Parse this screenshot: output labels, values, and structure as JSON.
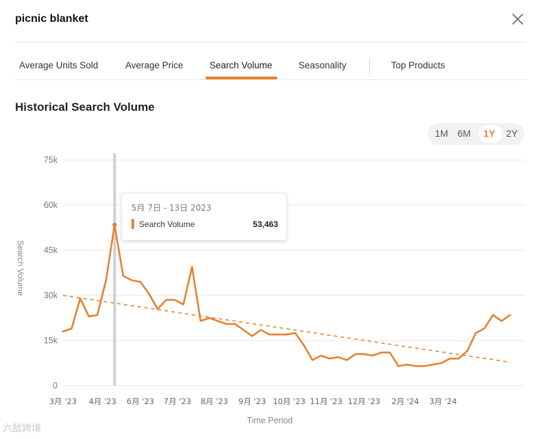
{
  "dialog": {
    "title": "picnic blanket",
    "close_icon": "close-icon"
  },
  "tabs": [
    {
      "label": "Average Units Sold",
      "active": false
    },
    {
      "label": "Average Price",
      "active": false
    },
    {
      "label": "Search Volume",
      "active": true
    },
    {
      "label": "Seasonality",
      "active": false
    },
    {
      "label": "Top Products",
      "active": false
    }
  ],
  "section": {
    "title": "Historical Search Volume"
  },
  "range_selector": {
    "options": [
      "1M",
      "6M",
      "1Y",
      "2Y"
    ],
    "selected": "1Y"
  },
  "tooltip": {
    "date": "5月 7日 - 13日 2023",
    "series_name": "Search Volume",
    "value": "53,463"
  },
  "watermark": "六敌跨境",
  "colors": {
    "accent": "#e8802f",
    "grid": "#e6e6e6",
    "cursor": "#d0d0d0"
  },
  "chart_data": {
    "type": "line",
    "title": "Historical Search Volume",
    "xlabel": "Time Period",
    "ylabel": "Search Volume",
    "ylim": [
      0,
      75000
    ],
    "y_ticks": [
      0,
      15000,
      30000,
      45000,
      60000,
      75000
    ],
    "y_tick_labels": [
      "0",
      "15k",
      "30k",
      "45k",
      "60k",
      "75k"
    ],
    "x_ticks": [
      0,
      4.3,
      8.7,
      13,
      17.4,
      21.8,
      26.1,
      30.5,
      34.8,
      39.2,
      43.6,
      47.9,
      52.3
    ],
    "x_tick_labels": [
      "3月 '23",
      "4月 '23",
      "6月 '23",
      "7月 '23",
      "8月 '23",
      "9月 '23",
      "10月 '23",
      "11月 '23",
      "12月 '23",
      "2月 '24",
      "3月 '24"
    ],
    "x_tick_label_positions": [
      0,
      4.6,
      9.0,
      13.3,
      17.6,
      22.0,
      26.3,
      30.6,
      35.0,
      39.8,
      44.2
    ],
    "grid": true,
    "series": [
      {
        "name": "Search Volume",
        "style": "solid",
        "values": [
          18000,
          19000,
          29000,
          23000,
          23500,
          35000,
          53463,
          36500,
          35000,
          34500,
          30500,
          25500,
          28500,
          28500,
          27000,
          39500,
          21500,
          22500,
          21500,
          20500,
          20500,
          18500,
          16500,
          18500,
          17000,
          17000,
          17000,
          17500,
          13500,
          8500,
          10000,
          9000,
          9500,
          8500,
          10500,
          10500,
          10000,
          11000,
          11000,
          6500,
          7000,
          6500,
          6500,
          7000,
          7500,
          9000,
          9000,
          11500,
          17500,
          19000,
          23500,
          21500,
          23500
        ]
      },
      {
        "name": "Trend",
        "style": "dashed",
        "start": 30000,
        "end": 7800
      }
    ],
    "highlight_index": 6
  }
}
